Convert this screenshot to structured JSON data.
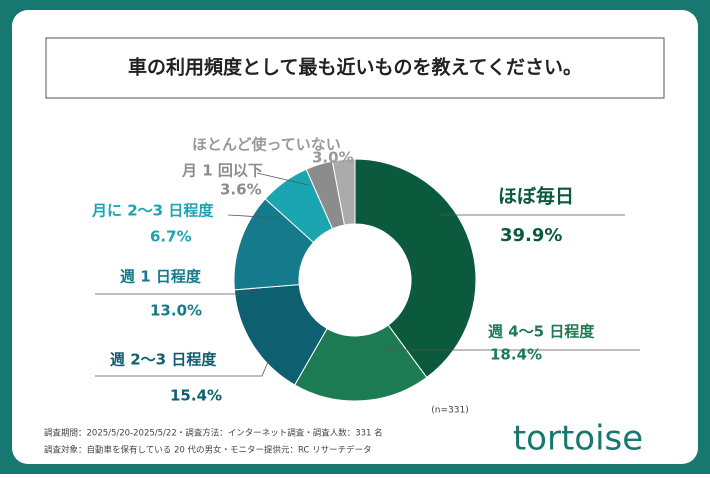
{
  "chart_data": {
    "type": "pie",
    "title": "車の利用頻度として最も近いものを教えてください。",
    "categories": [
      "ほぼ毎日",
      "週 4～5 日程度",
      "週 2～3 日程度",
      "週 1 日程度",
      "月に 2～3 日程度",
      "月 1 回以下",
      "ほとんど使っていない"
    ],
    "values": [
      39.9,
      18.4,
      15.4,
      13.0,
      6.7,
      3.6,
      3.0
    ],
    "value_labels": [
      "39.9%",
      "18.4%",
      "15.4%",
      "13.0%",
      "6.7%",
      "3.6%",
      "3.0%"
    ],
    "colors": [
      "#0b5a3d",
      "#1c7b52",
      "#0e5f70",
      "#157a8c",
      "#1aa5b0",
      "#8c8c8c",
      "#ababab"
    ],
    "label_colors": [
      "#0b5a3d",
      "#1c7b52",
      "#0e5f70",
      "#157a8c",
      "#1aa5b0",
      "#8c8c8c",
      "#999999"
    ],
    "sample_note": "(n=331)",
    "footnotes": [
      "調査期間：2025/5/20-2025/5/22・調査方法：インターネット調査・調査人数：331 名",
      "調査対象：自動車を保有している 20 代の男女・モニター提供元：RC リサーチデータ"
    ],
    "logo": "tortoise"
  }
}
